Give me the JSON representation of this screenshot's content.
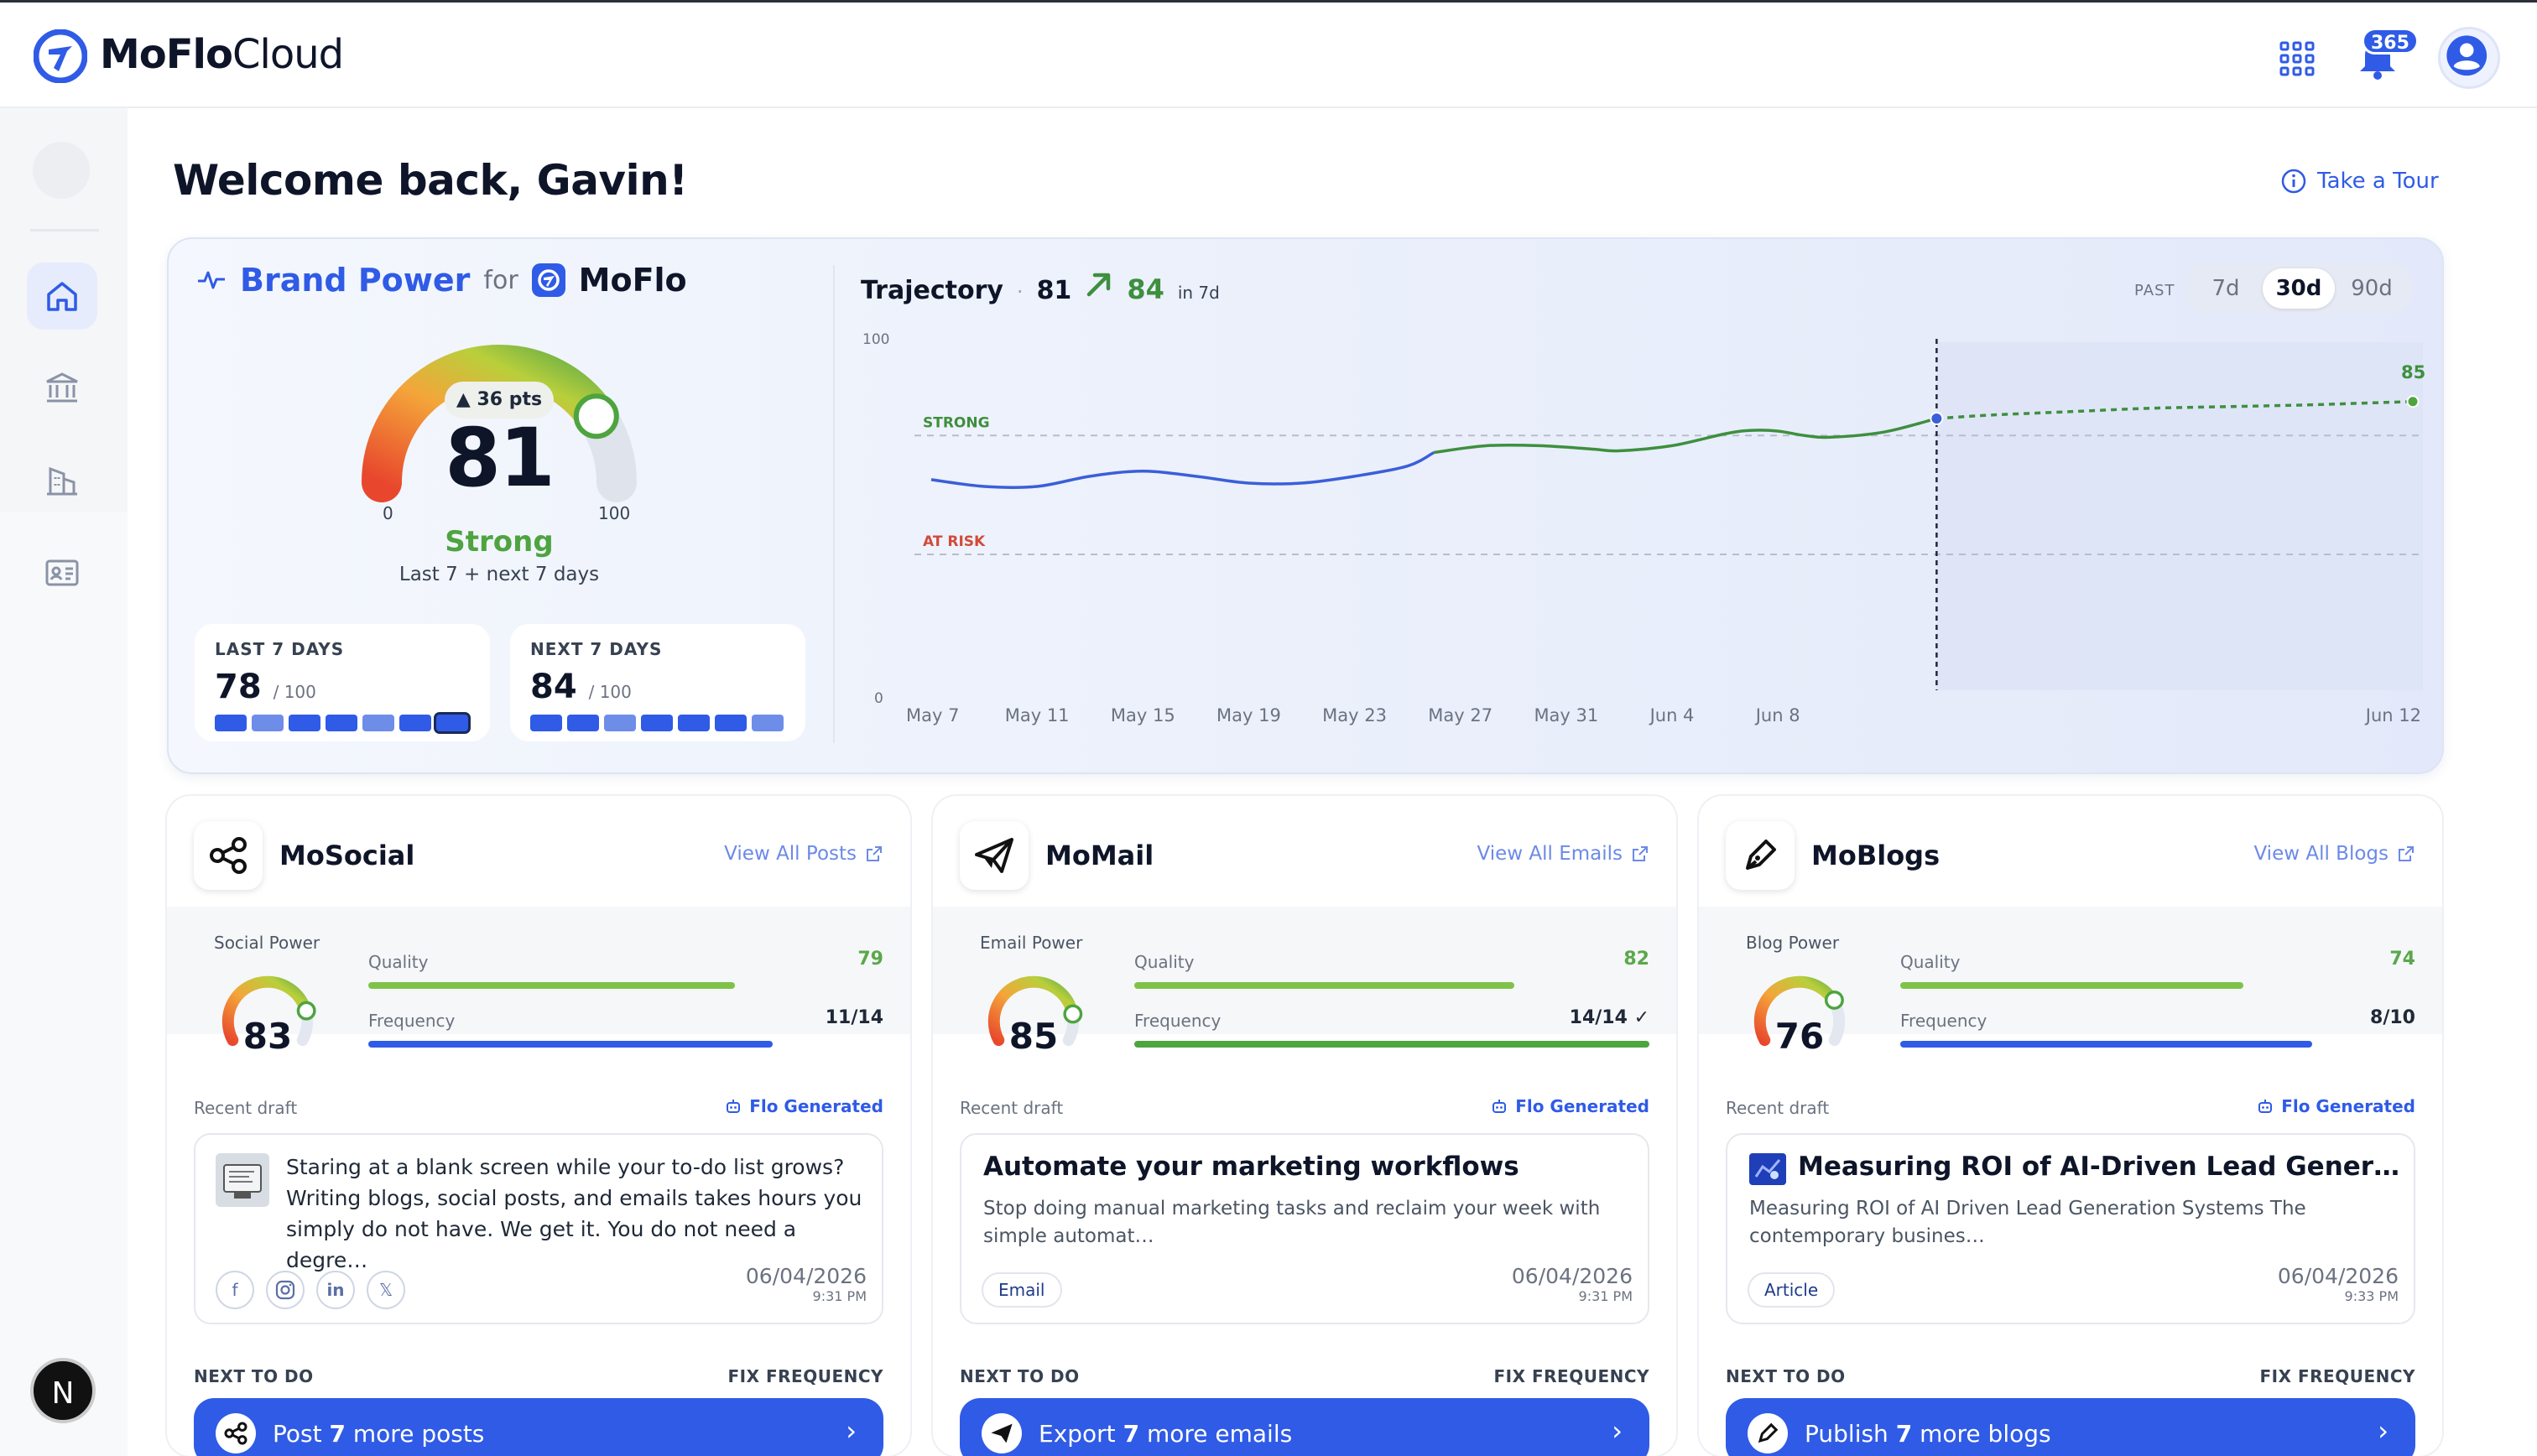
{
  "app": {
    "brand_bold": "MoFlo",
    "brand_light": "Cloud",
    "notifications": "365"
  },
  "sidebar": {
    "bottom_avatar": "N"
  },
  "welcome": "Welcome back, Gavin!",
  "tour_label": "Take a Tour",
  "brand_power": {
    "title": "Brand Power",
    "for": "for",
    "company": "MoFlo",
    "score": "81",
    "delta": "▲ 36 pts",
    "gauge_min": "0",
    "gauge_max": "100",
    "gauge_value_pct": 81,
    "status": "Strong",
    "subtitle": "Last 7 + next 7 days",
    "last7": {
      "label": "LAST 7 DAYS",
      "value": "78",
      "max": "/ 100"
    },
    "next7": {
      "label": "NEXT 7 DAYS",
      "value": "84",
      "max": "/ 100"
    }
  },
  "trajectory": {
    "title": "Trajectory",
    "dot": "·",
    "current": "81",
    "projected": "84",
    "in": "in 7d",
    "past_label": "PAST",
    "ranges": [
      "7d",
      "30d",
      "90d"
    ],
    "selected_range": "30d"
  },
  "chart_data": {
    "type": "line",
    "ylim": [
      0,
      100
    ],
    "y_tick_labels": [
      "100",
      "0"
    ],
    "x_tick_labels": [
      "May 7",
      "May 11",
      "May 15",
      "May 19",
      "May 23",
      "May 27",
      "May 31",
      "Jun 4",
      "Jun 8",
      "Jun 12"
    ],
    "thresholds": [
      {
        "label": "STRONG",
        "value": 75
      },
      {
        "label": "AT RISK",
        "value": 40
      }
    ],
    "end_label": "85",
    "series": [
      {
        "values": [
          [
            0,
            62
          ],
          [
            2,
            60
          ],
          [
            4,
            60
          ],
          [
            6,
            63
          ],
          [
            8,
            64.5
          ],
          [
            10,
            63
          ],
          [
            12,
            61
          ],
          [
            14,
            61
          ],
          [
            16,
            63
          ],
          [
            18,
            66
          ],
          [
            19,
            70
          ],
          [
            21,
            72
          ],
          [
            23,
            72
          ],
          [
            25,
            71
          ],
          [
            26,
            70.5
          ],
          [
            28,
            72
          ],
          [
            30,
            75.5
          ],
          [
            31,
            76.5
          ],
          [
            32,
            76.3
          ],
          [
            33,
            75
          ],
          [
            34,
            74.5
          ],
          [
            36,
            76
          ],
          [
            38,
            80
          ]
        ]
      },
      {
        "values": [
          [
            38,
            80
          ],
          [
            40,
            81
          ],
          [
            43,
            82
          ],
          [
            46,
            83
          ],
          [
            49,
            83.5
          ],
          [
            52,
            84
          ],
          [
            54,
            84.5
          ],
          [
            56,
            85
          ]
        ]
      }
    ]
  },
  "cards": [
    {
      "name": "MoSocial",
      "link": "View All Posts",
      "power_label": "Social Power",
      "power": "83",
      "power_pct": 83,
      "quality_label": "Quality",
      "quality": "79",
      "quality_pct": 79,
      "frequency_label": "Frequency",
      "frequency": "11/14",
      "frequency_pct": 78.5,
      "recent_label": "Recent draft",
      "flo": "Flo Generated",
      "draft_text": "Staring at a blank screen while your to-do list grows? Writing blogs, social posts, and emails takes hours you simply do not have. We get it. You do not need a degre…",
      "date": "06/04/2026",
      "time": "9:31 PM",
      "next_label": "NEXT TO DO",
      "fix_label": "FIX FREQUENCY",
      "cta_pre": "Post",
      "cta_num": "7",
      "cta_post": "more posts"
    },
    {
      "name": "MoMail",
      "link": "View All Emails",
      "power_label": "Email Power",
      "power": "85",
      "power_pct": 85,
      "quality_label": "Quality",
      "quality": "82",
      "quality_pct": 82,
      "frequency_label": "Frequency",
      "frequency": "14/14 ✓",
      "frequency_pct": 100,
      "recent_label": "Recent draft",
      "flo": "Flo Generated",
      "draft_title": "Automate your marketing workflows",
      "draft_body": "Stop doing manual marketing tasks and reclaim your week with simple automat…",
      "tag": "Email",
      "date": "06/04/2026",
      "time": "9:31 PM",
      "next_label": "NEXT TO DO",
      "fix_label": "FIX FREQUENCY",
      "cta_pre": "Export",
      "cta_num": "7",
      "cta_post": "more emails"
    },
    {
      "name": "MoBlogs",
      "link": "View All Blogs",
      "power_label": "Blog Power",
      "power": "76",
      "power_pct": 76,
      "quality_label": "Quality",
      "quality": "74",
      "quality_pct": 74,
      "frequency_label": "Frequency",
      "frequency": "8/10",
      "frequency_pct": 80,
      "recent_label": "Recent draft",
      "flo": "Flo Generated",
      "draft_title": "Measuring ROI of AI-Driven Lead Generatio…",
      "draft_body": "Measuring ROI of AI Driven Lead Generation Systems The contemporary busines…",
      "tag": "Article",
      "date": "06/04/2026",
      "time": "9:33 PM",
      "next_label": "NEXT TO DO",
      "fix_label": "FIX FREQUENCY",
      "cta_pre": "Publish",
      "cta_num": "7",
      "cta_post": "more blogs"
    }
  ],
  "colors": {
    "accent": "#2f5be6",
    "strong": "#4ea43f",
    "at_risk": "#d14b3a"
  }
}
